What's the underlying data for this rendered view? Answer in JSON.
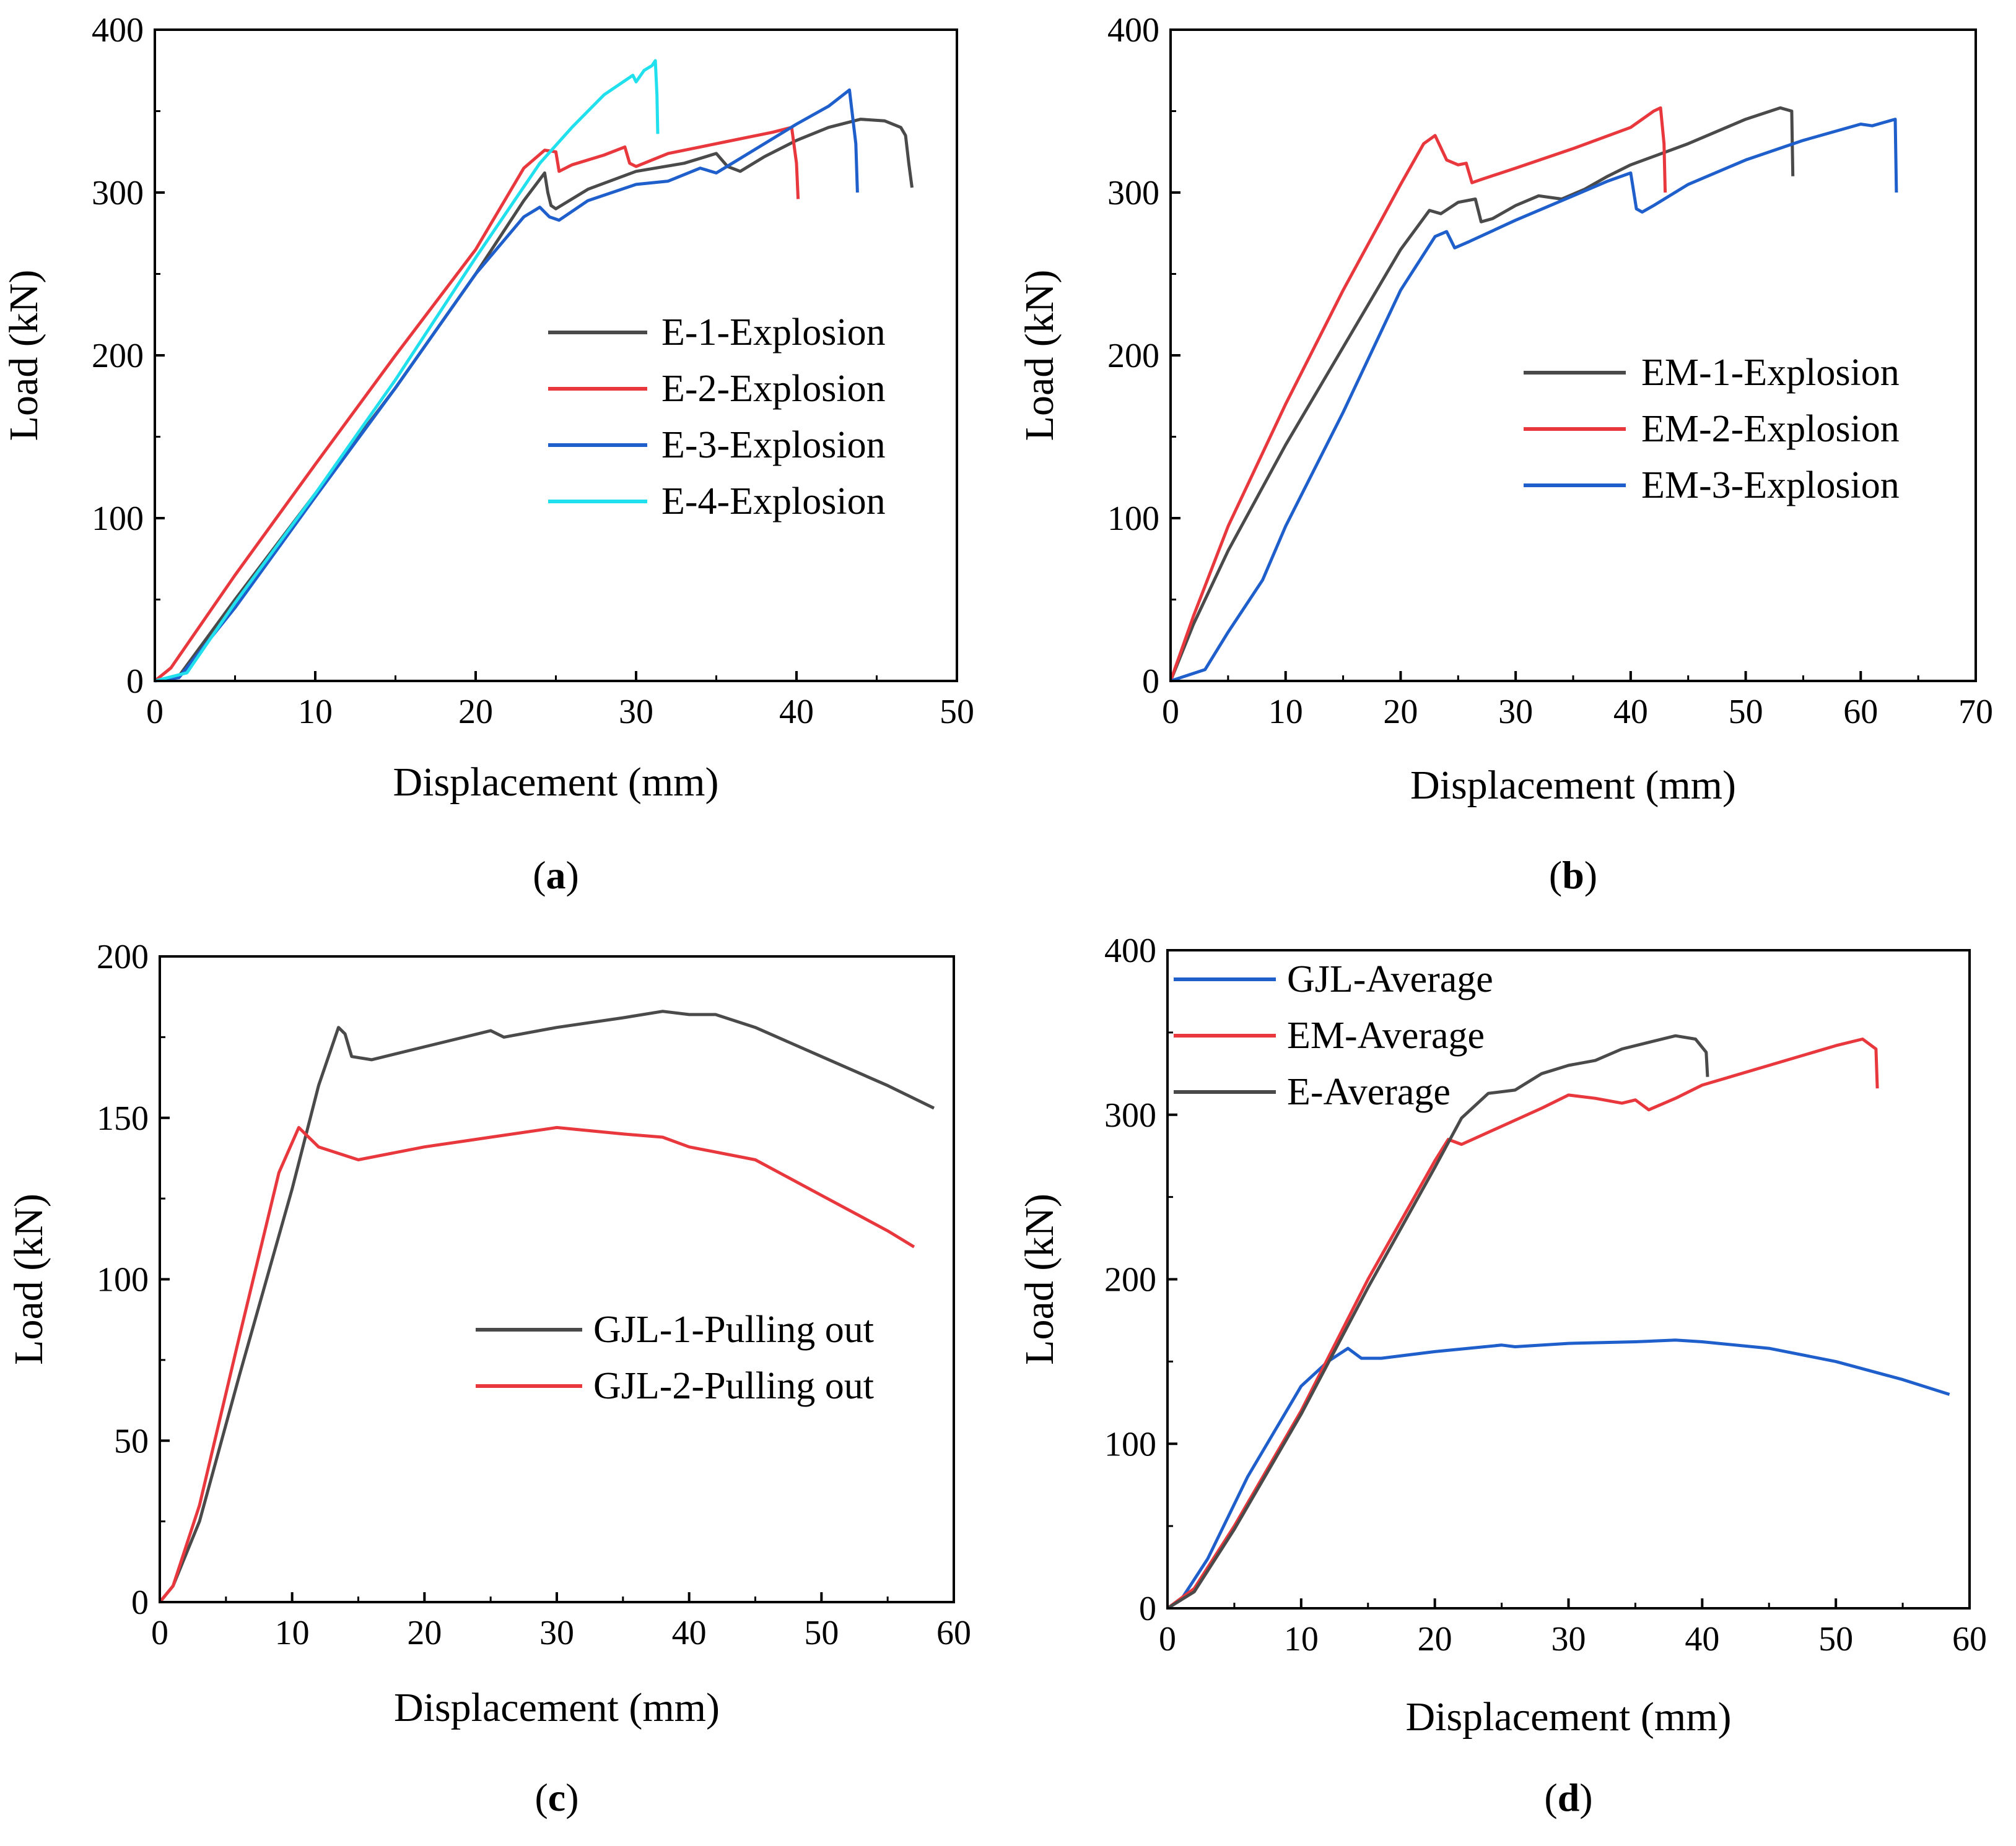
{
  "chart_data": [
    {
      "type": "line",
      "panel_label": "a",
      "xlabel": "Displacement (mm)",
      "ylabel": "Load (kN)",
      "xlim": [
        0,
        50
      ],
      "ylim": [
        0,
        400
      ],
      "xticks": [
        "0",
        "10",
        "20",
        "30",
        "40",
        "50"
      ],
      "yticks": [
        "0",
        "100",
        "200",
        "300",
        "400"
      ],
      "grid": false,
      "legend_position": "center-right",
      "series": [
        {
          "name": "E-1-Explosion",
          "color": "#4a4a4a",
          "x": [
            0,
            1.5,
            5,
            10,
            15,
            20,
            23,
            24.3,
            24.5,
            24.7,
            25,
            27,
            30,
            33,
            35,
            35.7,
            36.5,
            38,
            40,
            42,
            44,
            45.5,
            46.5,
            46.8,
            47,
            47.2
          ],
          "y": [
            0,
            3,
            50,
            115,
            180,
            250,
            295,
            312,
            300,
            292,
            290,
            302,
            313,
            318,
            324,
            316,
            313,
            322,
            332,
            340,
            345,
            344,
            340,
            335,
            318,
            303
          ]
        },
        {
          "name": "E-2-Explosion",
          "color": "#e8383d",
          "x": [
            0,
            1,
            5,
            10,
            15,
            20,
            23,
            24.3,
            25,
            25.2,
            26,
            28,
            29.3,
            29.6,
            30,
            32,
            34,
            35.5,
            37,
            38.5,
            39.7,
            40,
            40.1
          ],
          "y": [
            0,
            8,
            65,
            133,
            200,
            265,
            315,
            326,
            325,
            313,
            317,
            323,
            328,
            318,
            316,
            324,
            328,
            331,
            334,
            337,
            340,
            318,
            296
          ]
        },
        {
          "name": "E-3-Explosion",
          "color": "#1f5fcc",
          "x": [
            0,
            1.5,
            5,
            10,
            15,
            20,
            23,
            24,
            24.6,
            25.2,
            27,
            30,
            32,
            34,
            35,
            36,
            38,
            40,
            42,
            43.3,
            43.7,
            43.8
          ],
          "y": [
            0,
            2,
            45,
            113,
            180,
            250,
            285,
            291,
            285,
            283,
            295,
            305,
            307,
            315,
            312,
            318,
            330,
            342,
            353,
            363,
            330,
            300
          ]
        },
        {
          "name": "E-4-Explosion",
          "color": "#20e0ee",
          "x": [
            0,
            2,
            5,
            10,
            15,
            20,
            24,
            26,
            28,
            29.8,
            30,
            30.5,
            31,
            31.2,
            31.3,
            31.35
          ],
          "y": [
            0,
            5,
            48,
            115,
            185,
            260,
            318,
            340,
            360,
            372,
            368,
            375,
            378,
            381,
            360,
            336
          ]
        }
      ]
    },
    {
      "type": "line",
      "panel_label": "b",
      "xlabel": "Displacement (mm)",
      "ylabel": "Load (kN)",
      "xlim": [
        0,
        70
      ],
      "ylim": [
        0,
        400
      ],
      "xticks": [
        "0",
        "10",
        "20",
        "30",
        "40",
        "50",
        "60",
        "70"
      ],
      "yticks": [
        "0",
        "100",
        "200",
        "300",
        "400"
      ],
      "grid": false,
      "legend_position": "center-right",
      "series": [
        {
          "name": "EM-1-Explosion",
          "color": "#4a4a4a",
          "x": [
            0,
            2,
            5,
            10,
            15,
            20,
            22.5,
            23.5,
            25,
            26.5,
            27,
            28,
            30,
            32,
            34,
            36,
            38,
            40,
            45,
            50,
            53,
            54,
            54.1
          ],
          "y": [
            0,
            35,
            80,
            145,
            205,
            265,
            289,
            287,
            294,
            296,
            282,
            284,
            292,
            298,
            296,
            302,
            310,
            317,
            330,
            345,
            352,
            350,
            310
          ]
        },
        {
          "name": "EM-2-Explosion",
          "color": "#e8383d",
          "x": [
            0,
            2,
            5,
            10,
            15,
            20,
            22,
            23,
            24,
            25,
            25.7,
            26.2,
            27,
            30,
            35,
            40,
            42,
            42.6,
            42.9,
            43
          ],
          "y": [
            0,
            40,
            95,
            170,
            240,
            305,
            330,
            335,
            320,
            317,
            318,
            306,
            308,
            315,
            327,
            340,
            350,
            352,
            330,
            300
          ]
        },
        {
          "name": "EM-3-Explosion",
          "color": "#1f5fcc",
          "x": [
            0,
            3,
            5,
            8,
            10,
            15,
            20,
            23,
            24,
            24.7,
            26,
            30,
            35,
            38,
            40,
            40.5,
            41,
            42,
            45,
            50,
            55,
            60,
            61,
            62,
            63,
            63.1
          ],
          "y": [
            0,
            7,
            30,
            62,
            95,
            165,
            240,
            273,
            276,
            266,
            270,
            283,
            298,
            307,
            312,
            290,
            288,
            292,
            305,
            320,
            332,
            342,
            341,
            343,
            345,
            300
          ]
        }
      ]
    },
    {
      "type": "line",
      "panel_label": "c",
      "xlabel": "Displacement (mm)",
      "ylabel": "Load (kN)",
      "xlim": [
        0,
        60
      ],
      "ylim": [
        0,
        200
      ],
      "xticks": [
        "0",
        "10",
        "20",
        "30",
        "40",
        "50",
        "60"
      ],
      "yticks": [
        "0",
        "50",
        "100",
        "150",
        "200"
      ],
      "grid": false,
      "legend_position": "center-right",
      "series": [
        {
          "name": "GJL-1-Pulling out",
          "color": "#4a4a4a",
          "x": [
            0,
            1,
            3,
            6,
            10,
            12,
            13.5,
            14,
            14.5,
            16,
            20,
            25,
            26,
            30,
            35,
            38,
            40,
            42,
            45,
            50,
            55,
            58.5
          ],
          "y": [
            0,
            5,
            25,
            70,
            128,
            160,
            178,
            176,
            169,
            168,
            172,
            177,
            175,
            178,
            181,
            183,
            182,
            182,
            178,
            169,
            160,
            153
          ]
        },
        {
          "name": "GJL-2-Pulling out",
          "color": "#e8383d",
          "x": [
            0,
            1,
            3,
            6,
            9,
            10.5,
            11,
            12,
            15,
            20,
            25,
            30,
            35,
            38,
            40,
            45,
            50,
            55,
            57
          ],
          "y": [
            0,
            5,
            30,
            82,
            133,
            147,
            145,
            141,
            137,
            141,
            144,
            147,
            145,
            144,
            141,
            137,
            126,
            115,
            110
          ]
        }
      ]
    },
    {
      "type": "line",
      "panel_label": "d",
      "xlabel": "Displacement (mm)",
      "ylabel": "Load (kN)",
      "xlim": [
        0,
        60
      ],
      "ylim": [
        0,
        400
      ],
      "xticks": [
        "0",
        "10",
        "20",
        "30",
        "40",
        "50",
        "60"
      ],
      "yticks": [
        "0",
        "100",
        "200",
        "300",
        "400"
      ],
      "grid": false,
      "legend_position": "top-left",
      "series": [
        {
          "name": "GJL-Average",
          "color": "#1f5fcc",
          "x": [
            0,
            1,
            3,
            6,
            10,
            12,
            13.5,
            14.5,
            16,
            20,
            25,
            26,
            30,
            35,
            38,
            40,
            45,
            50,
            55,
            58.5
          ],
          "y": [
            0,
            5,
            30,
            80,
            135,
            150,
            158,
            152,
            152,
            156,
            160,
            159,
            161,
            162,
            163,
            162,
            158,
            150,
            139,
            130
          ]
        },
        {
          "name": "EM-Average",
          "color": "#e8383d",
          "x": [
            0,
            2,
            5,
            10,
            15,
            20,
            21,
            22,
            25,
            28,
            30,
            32,
            34,
            35,
            36,
            38,
            40,
            45,
            50,
            52,
            53,
            53.1
          ],
          "y": [
            0,
            12,
            50,
            120,
            200,
            272,
            285,
            282,
            293,
            304,
            312,
            310,
            307,
            309,
            303,
            310,
            318,
            330,
            342,
            346,
            340,
            316
          ]
        },
        {
          "name": "E-Average",
          "color": "#4a4a4a",
          "x": [
            0,
            2,
            5,
            10,
            15,
            20,
            22,
            24,
            26,
            28,
            30,
            32,
            34,
            36,
            38,
            39.5,
            40.3,
            40.4
          ],
          "y": [
            0,
            10,
            48,
            118,
            195,
            268,
            298,
            313,
            315,
            325,
            330,
            333,
            340,
            344,
            348,
            346,
            338,
            323
          ]
        }
      ]
    }
  ]
}
